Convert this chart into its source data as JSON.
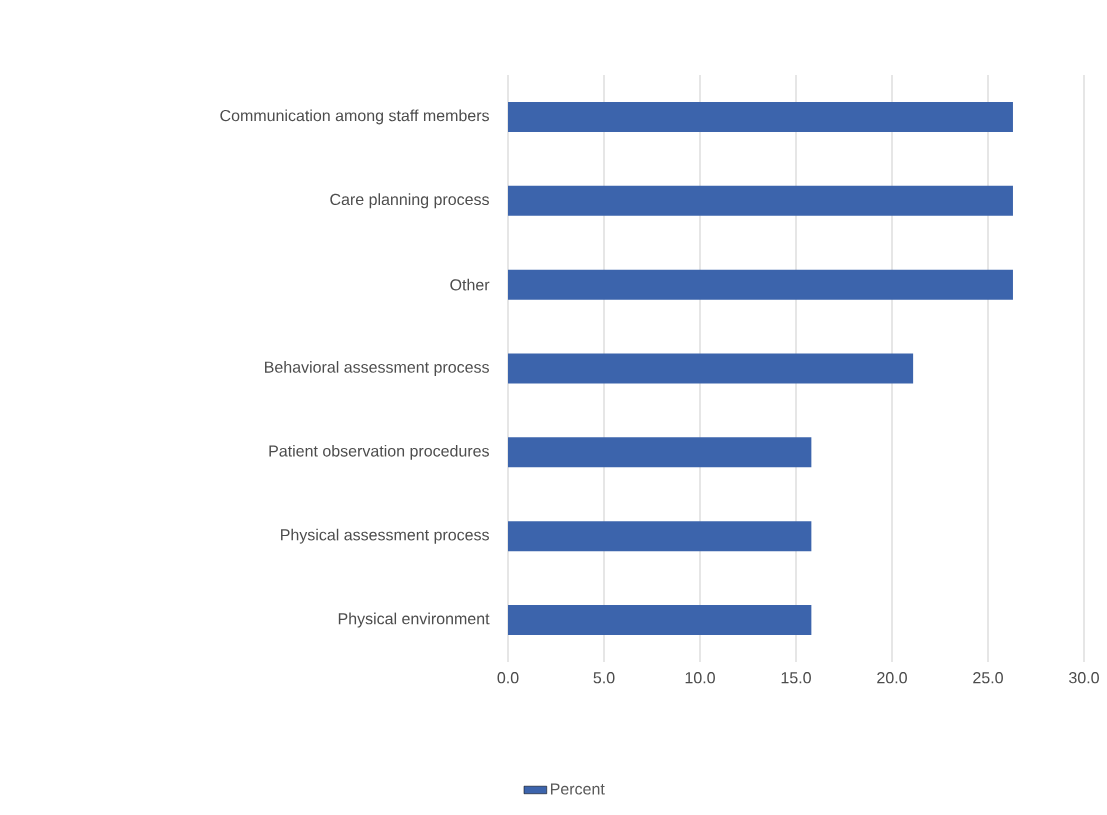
{
  "chart_data": {
    "type": "bar",
    "orientation": "horizontal",
    "categories": [
      "Communication among staff members",
      "Care planning process",
      "Other",
      "Behavioral assessment process",
      "Patient observation procedures",
      "Physical assessment process",
      "Physical environment"
    ],
    "series": [
      {
        "name": "Percent",
        "color": "#3c64ac",
        "values": [
          26.3,
          26.3,
          26.3,
          21.1,
          15.8,
          15.8,
          15.8
        ]
      }
    ],
    "xlim": [
      0,
      30
    ],
    "xticks": [
      {
        "value": 0,
        "label": "0.0"
      },
      {
        "value": 5,
        "label": "5.0"
      },
      {
        "value": 10,
        "label": "10.0"
      },
      {
        "value": 15,
        "label": "15.0"
      },
      {
        "value": 20,
        "label": "20.0"
      },
      {
        "value": 25,
        "label": "25.0"
      },
      {
        "value": 30,
        "label": "30.0"
      }
    ],
    "grid": "x",
    "legend": "bottom"
  }
}
